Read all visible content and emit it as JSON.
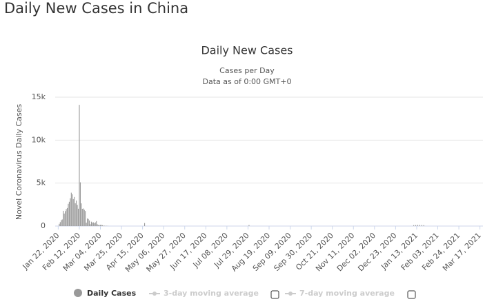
{
  "page_title": "Daily New Cases in China",
  "chart_data": {
    "type": "bar",
    "title": "Daily New Cases",
    "subtitle": "Cases per Day",
    "subtitle2": "Data as of 0:00 GMT+0",
    "y_label": "Novel Coronavirus Daily Cases",
    "x": [
      "2020-01-23",
      "2020-01-24",
      "2020-01-25",
      "2020-01-26",
      "2020-01-27",
      "2020-01-28",
      "2020-01-29",
      "2020-01-30",
      "2020-01-31",
      "2020-02-01",
      "2020-02-02",
      "2020-02-03",
      "2020-02-04",
      "2020-02-05",
      "2020-02-06",
      "2020-02-07",
      "2020-02-08",
      "2020-02-09",
      "2020-02-10",
      "2020-02-11",
      "2020-02-12",
      "2020-02-13",
      "2020-02-14",
      "2020-02-15",
      "2020-02-16",
      "2020-02-17",
      "2020-02-18",
      "2020-02-19",
      "2020-02-20",
      "2020-02-21",
      "2020-02-22",
      "2020-02-23",
      "2020-02-24",
      "2020-02-25",
      "2020-02-26",
      "2020-02-27",
      "2020-02-28",
      "2020-02-29",
      "2020-03-01",
      "2020-03-02",
      "2020-03-03",
      "2020-03-04",
      "2020-03-05",
      "2020-03-06",
      "2020-03-07",
      "2020-03-08",
      "2020-03-09",
      "2020-03-10",
      "2020-03-11",
      "2020-03-12",
      "2020-04-17",
      "2020-07-30",
      "2021-01-10",
      "2021-01-12",
      "2021-01-14",
      "2021-01-16",
      "2021-01-18",
      "2021-01-20"
    ],
    "series": [
      {
        "name": "Daily Cases",
        "color": "#999999",
        "values": [
          259,
          457,
          688,
          769,
          1771,
          1459,
          1737,
          1981,
          2099,
          2589,
          2825,
          3235,
          3884,
          3694,
          3143,
          3385,
          2652,
          2973,
          2467,
          2015,
          14108,
          5090,
          2641,
          2008,
          2048,
          1888,
          1749,
          391,
          889,
          823,
          648,
          214,
          508,
          406,
          433,
          327,
          427,
          573,
          202,
          125,
          119,
          139,
          143,
          99,
          44,
          40,
          19,
          24,
          15,
          8,
          352,
          127,
          103,
          115,
          138,
          130,
          118,
          103
        ]
      }
    ],
    "hidden_series": [
      "3-day moving average",
      "7-day moving average"
    ],
    "xlim": [
      "2020-01-19",
      "2021-03-20"
    ],
    "xticks": [
      {
        "value": "2020-01-22",
        "label": "Jan 22, 2020"
      },
      {
        "value": "2020-02-12",
        "label": "Feb 12, 2020"
      },
      {
        "value": "2020-03-04",
        "label": "Mar 04, 2020"
      },
      {
        "value": "2020-03-25",
        "label": "Mar 25, 2020"
      },
      {
        "value": "2020-04-15",
        "label": "Apr 15, 2020"
      },
      {
        "value": "2020-05-06",
        "label": "May 06, 2020"
      },
      {
        "value": "2020-05-27",
        "label": "May 27, 2020"
      },
      {
        "value": "2020-06-17",
        "label": "Jun 17, 2020"
      },
      {
        "value": "2020-07-08",
        "label": "Jul 08, 2020"
      },
      {
        "value": "2020-07-29",
        "label": "Jul 29, 2020"
      },
      {
        "value": "2020-08-19",
        "label": "Aug 19, 2020"
      },
      {
        "value": "2020-09-09",
        "label": "Sep 09, 2020"
      },
      {
        "value": "2020-09-30",
        "label": "Sep 30, 2020"
      },
      {
        "value": "2020-10-21",
        "label": "Oct 21, 2020"
      },
      {
        "value": "2020-11-11",
        "label": "Nov 11, 2020"
      },
      {
        "value": "2020-12-02",
        "label": "Dec 02, 2020"
      },
      {
        "value": "2020-12-23",
        "label": "Dec 23, 2020"
      },
      {
        "value": "2021-01-13",
        "label": "Jan 13, 2021"
      },
      {
        "value": "2021-02-03",
        "label": "Feb 03, 2021"
      },
      {
        "value": "2021-02-24",
        "label": "Feb 24, 2021"
      },
      {
        "value": "2021-03-17",
        "label": "Mar 17, 2021"
      }
    ],
    "ylim": [
      0,
      15000
    ],
    "yticks": [
      0,
      {
        "value": 5000,
        "label": "5k"
      },
      {
        "value": 10000,
        "label": "10k"
      },
      {
        "value": 15000,
        "label": "15k"
      }
    ],
    "grid": true
  }
}
